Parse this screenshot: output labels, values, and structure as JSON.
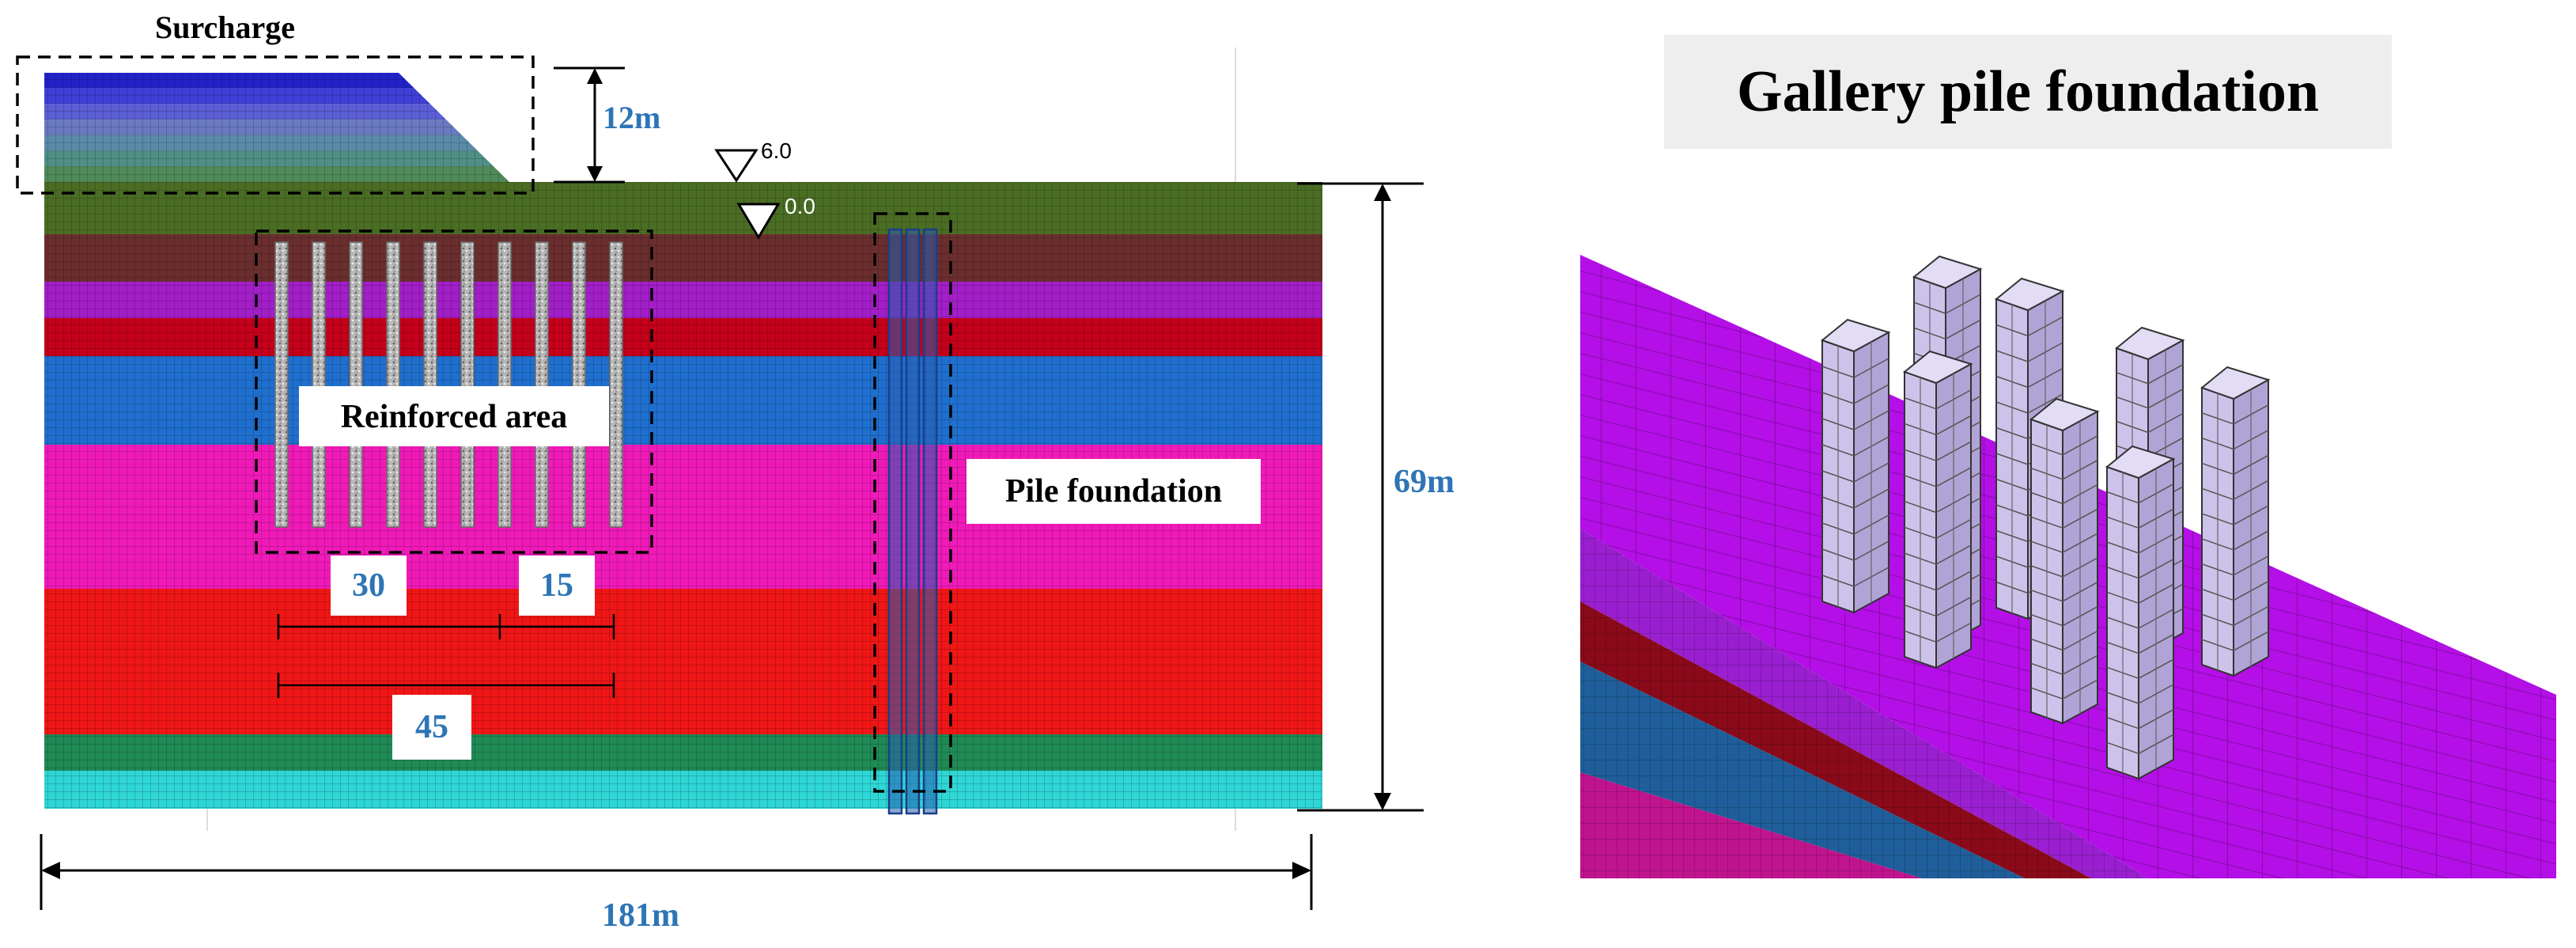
{
  "labels": {
    "surcharge": "Surcharge",
    "surcharge_height": "12m",
    "water_level_top": "6.0",
    "water_level_ground": "0.0",
    "reinforced_area": "Reinforced area",
    "pile_foundation": "Pile foundation",
    "model_height": "69m",
    "model_width": "181m",
    "dim_30": "30",
    "dim_15": "15",
    "dim_45": "45",
    "gallery_title": "Gallery pile foundation"
  },
  "colors": {
    "text_blue": "#2e75b6",
    "mesh_line": "#000000",
    "pile_light": "#cdc3ea",
    "pile_side": "#b0a4d6",
    "pile_top": "#e2dcf5",
    "title_bg": "#eeeeee"
  },
  "soil_layers": [
    {
      "name": "layer-1",
      "color": "#4a6d24"
    },
    {
      "name": "layer-2",
      "color": "#6b2e2e"
    },
    {
      "name": "layer-3",
      "color": "#a21fc8"
    },
    {
      "name": "layer-4",
      "color": "#c4001a"
    },
    {
      "name": "layer-5",
      "color": "#1f6fce"
    },
    {
      "name": "layer-6",
      "color": "#f01ab8"
    },
    {
      "name": "layer-7",
      "color": "#f01616"
    },
    {
      "name": "layer-8",
      "color": "#1f8a55"
    },
    {
      "name": "layer-9",
      "color": "#2fd6d6"
    }
  ],
  "surcharge_bands": [
    "#2222c8",
    "#3f3fd8",
    "#5b5fd6",
    "#6a7ac0",
    "#5a8aa8",
    "#4f8f86",
    "#4f8a5a"
  ]
}
